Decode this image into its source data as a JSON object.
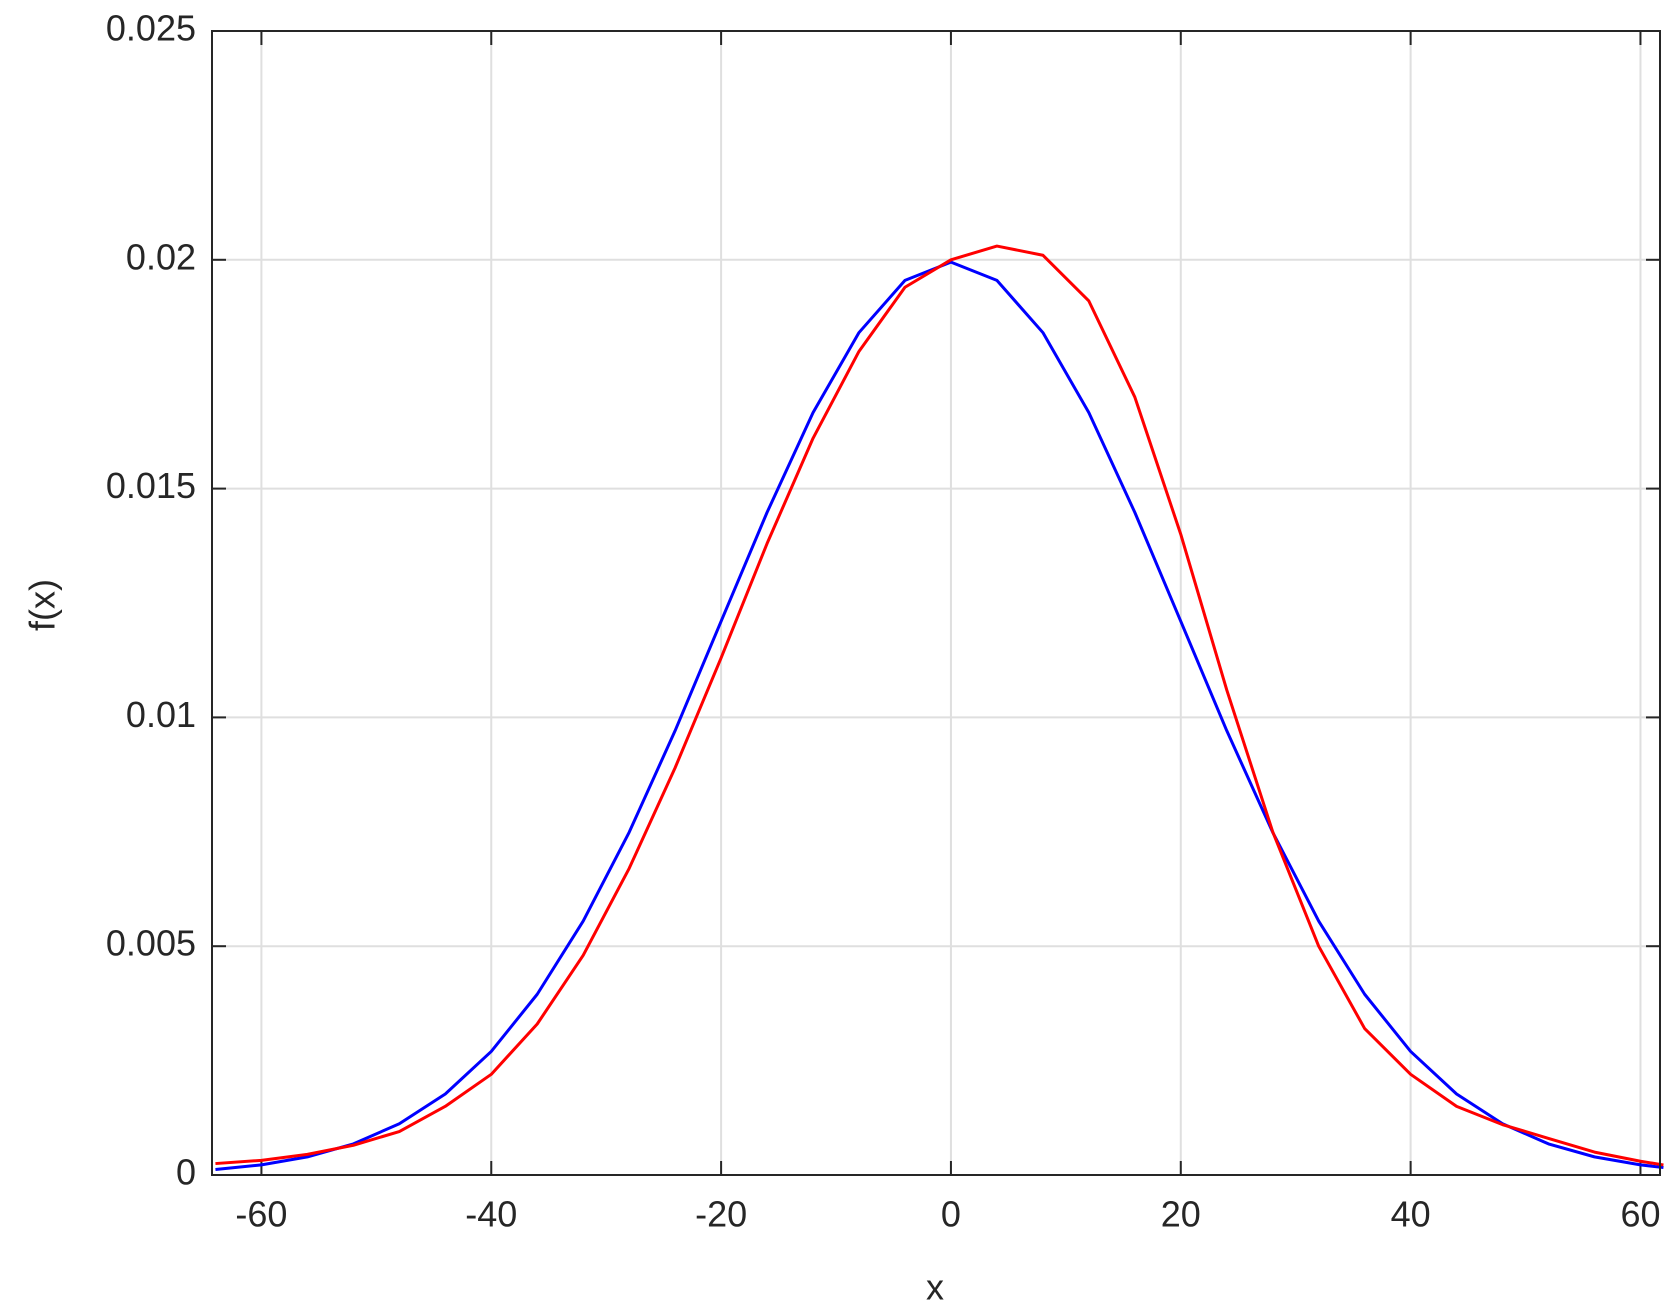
{
  "chart_data": {
    "type": "line",
    "x_label": "x",
    "y_label": "f(x)",
    "x": [
      -64,
      -60,
      -56,
      -52,
      -48,
      -44,
      -40,
      -36,
      -32,
      -28,
      -24,
      -20,
      -16,
      -12,
      -8,
      -4,
      0,
      4,
      8,
      12,
      16,
      20,
      24,
      28,
      32,
      36,
      40,
      44,
      48,
      52,
      56,
      60,
      62
    ],
    "series": [
      {
        "color": "#0000ff",
        "values": [
          0.000119,
          0.000222,
          0.000396,
          0.000679,
          0.00112,
          0.00177,
          0.0027,
          0.00395,
          0.00555,
          0.00749,
          0.00971,
          0.0121,
          0.01448,
          0.01666,
          0.01841,
          0.01955,
          0.01995,
          0.01955,
          0.01841,
          0.01666,
          0.01448,
          0.0121,
          0.00971,
          0.00749,
          0.00555,
          0.00395,
          0.0027,
          0.00177,
          0.00112,
          0.000679,
          0.000396,
          0.000222,
          0.000163
        ]
      },
      {
        "color": "#ff0000",
        "values": [
          0.00025,
          0.00032,
          0.00045,
          0.00065,
          0.00095,
          0.0015,
          0.0022,
          0.0033,
          0.0048,
          0.0067,
          0.0089,
          0.0113,
          0.0138,
          0.0161,
          0.018,
          0.0194,
          0.02,
          0.0203,
          0.0201,
          0.0191,
          0.017,
          0.014,
          0.0106,
          0.0075,
          0.005,
          0.0032,
          0.0022,
          0.0015,
          0.0011,
          0.0008,
          0.0005,
          0.0003,
          0.00022
        ]
      }
    ],
    "xlim": [
      -64.3,
      61.7
    ],
    "xticks": [
      -60,
      -40,
      -20,
      0,
      20,
      40,
      60
    ],
    "ylim": [
      0,
      0.025
    ],
    "yticks": [
      0,
      0.005,
      0.01,
      0.015,
      0.02,
      0.025
    ],
    "grid": true
  }
}
